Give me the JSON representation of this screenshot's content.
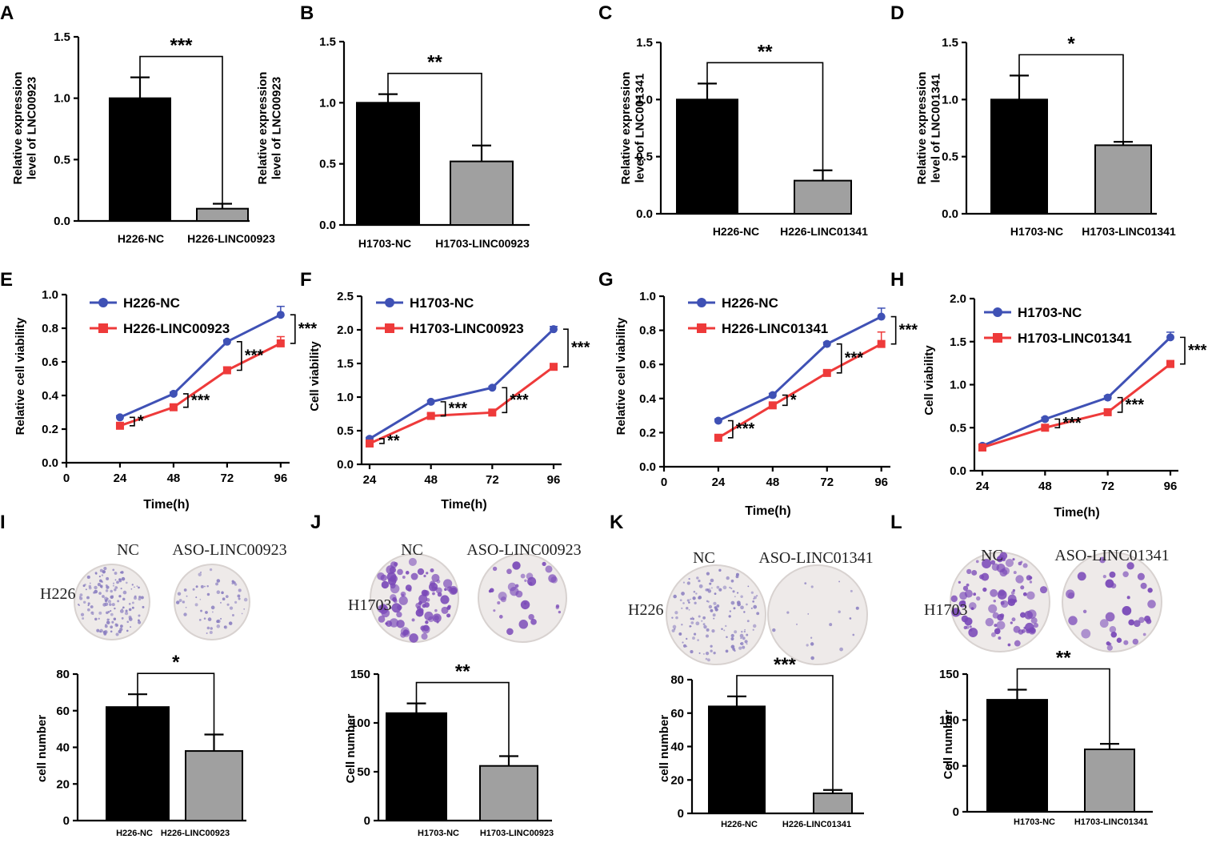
{
  "panels": [
    {
      "label": "A",
      "type": "bar",
      "ylabel": [
        "Relative expression",
        "level of LNC00923"
      ],
      "yticks": [
        "0.0",
        "0.5",
        "1.0",
        "1.5"
      ],
      "ylim": [
        0,
        1.5
      ],
      "categories": [
        "H226-NC",
        "H226-LINC00923"
      ],
      "values": [
        1.0,
        0.1
      ],
      "errors": [
        0.17,
        0.04
      ],
      "sig": "***"
    },
    {
      "label": "B",
      "type": "bar",
      "ylabel": [
        "Relative expression",
        "level of LNC00923"
      ],
      "yticks": [
        "0.0",
        "0.5",
        "1.0",
        "1.5"
      ],
      "ylim": [
        0,
        1.5
      ],
      "categories": [
        "H1703-NC",
        "H1703-LINC00923"
      ],
      "values": [
        1.0,
        0.52
      ],
      "errors": [
        0.07,
        0.13
      ],
      "sig": "**"
    },
    {
      "label": "C",
      "type": "bar",
      "ylabel": [
        "Relative expression",
        "level of LNC001341"
      ],
      "yticks": [
        "0.0",
        "0.5",
        "1.0",
        "1.5"
      ],
      "ylim": [
        0,
        1.5
      ],
      "categories": [
        "H226-NC",
        "H226-LINC01341"
      ],
      "values": [
        1.0,
        0.29
      ],
      "errors": [
        0.14,
        0.09
      ],
      "sig": "**"
    },
    {
      "label": "D",
      "type": "bar",
      "ylabel": [
        "Relative expression",
        "level of LNC001341"
      ],
      "yticks": [
        "0.0",
        "0.5",
        "1.0",
        "1.5"
      ],
      "ylim": [
        0,
        1.5
      ],
      "categories": [
        "H1703-NC",
        "H1703-LINC01341"
      ],
      "values": [
        1.0,
        0.6
      ],
      "errors": [
        0.21,
        0.03
      ],
      "sig": "*"
    },
    {
      "label": "E",
      "type": "line",
      "ylabel": [
        "Relative cell viability"
      ],
      "xlabel": "Time(h)",
      "xticks": [
        "0",
        "24",
        "48",
        "72",
        "96"
      ],
      "xlim": [
        0,
        100
      ],
      "yticks": [
        "0.0",
        "0.2",
        "0.4",
        "0.6",
        "0.8",
        "1.0"
      ],
      "ylim": [
        0,
        1.0
      ],
      "x": [
        24,
        48,
        72,
        96
      ],
      "series": [
        {
          "name": "H226-NC",
          "values": [
            0.27,
            0.41,
            0.72,
            0.88
          ],
          "errors": [
            0.01,
            0.01,
            0.01,
            0.05
          ]
        },
        {
          "name": "H226-LINC00923",
          "values": [
            0.22,
            0.33,
            0.55,
            0.71
          ],
          "errors": [
            0.01,
            0.01,
            0.02,
            0.04
          ]
        }
      ],
      "sigs": [
        "*",
        "***",
        "***",
        "***"
      ]
    },
    {
      "label": "F",
      "type": "line",
      "ylabel": [
        "Cell viability"
      ],
      "xlabel": "Time(h)",
      "xticks": [
        "24",
        "48",
        "72",
        "96"
      ],
      "xlim": [
        24,
        96
      ],
      "yticks": [
        "0.0",
        "0.5",
        "1.0",
        "1.5",
        "2.0",
        "2.5"
      ],
      "ylim": [
        0,
        2.5
      ],
      "x": [
        24,
        48,
        72,
        96
      ],
      "series": [
        {
          "name": "H1703-NC",
          "values": [
            0.38,
            0.93,
            1.14,
            2.01
          ],
          "errors": [
            0.02,
            0.02,
            0.02,
            0.04
          ]
        },
        {
          "name": "H1703-LINC00923",
          "values": [
            0.31,
            0.72,
            0.77,
            1.45
          ],
          "errors": [
            0.02,
            0.03,
            0.02,
            0.02
          ]
        }
      ],
      "sigs": [
        "**",
        "***",
        "***",
        "***"
      ]
    },
    {
      "label": "G",
      "type": "line",
      "ylabel": [
        "Relative cell viability"
      ],
      "xlabel": "Time(h)",
      "xticks": [
        "0",
        "24",
        "48",
        "72",
        "96"
      ],
      "xlim": [
        0,
        100
      ],
      "yticks": [
        "0.0",
        "0.2",
        "0.4",
        "0.6",
        "0.8",
        "1.0"
      ],
      "ylim": [
        0,
        1.0
      ],
      "x": [
        24,
        48,
        72,
        96
      ],
      "series": [
        {
          "name": "H226-NC",
          "values": [
            0.27,
            0.42,
            0.72,
            0.88
          ],
          "errors": [
            0.01,
            0.01,
            0.01,
            0.05
          ]
        },
        {
          "name": "H226-LINC01341",
          "values": [
            0.17,
            0.36,
            0.55,
            0.72
          ],
          "errors": [
            0.01,
            0.01,
            0.01,
            0.07
          ]
        }
      ],
      "sigs": [
        "***",
        "*",
        "***",
        "***"
      ]
    },
    {
      "label": "H",
      "type": "line",
      "ylabel": [
        "Cell viability"
      ],
      "xlabel": "Time(h)",
      "xticks": [
        "24",
        "48",
        "72",
        "96"
      ],
      "xlim": [
        24,
        96
      ],
      "yticks": [
        "0.0",
        "0.5",
        "1.0",
        "1.5",
        "2.0"
      ],
      "ylim": [
        0,
        2.0
      ],
      "x": [
        24,
        48,
        72,
        96
      ],
      "series": [
        {
          "name": "H1703-NC",
          "values": [
            0.29,
            0.6,
            0.85,
            1.55
          ],
          "errors": [
            0.02,
            0.02,
            0.02,
            0.06
          ]
        },
        {
          "name": "H1703-LINC01341",
          "values": [
            0.27,
            0.5,
            0.68,
            1.24
          ],
          "errors": [
            0.01,
            0.02,
            0.02,
            0.04
          ]
        }
      ],
      "sigs": [
        "",
        "***",
        "***",
        "***"
      ]
    },
    {
      "label": "I",
      "type": "bar",
      "ylabel": [
        "cell number"
      ],
      "yticks": [
        "0",
        "20",
        "40",
        "60",
        "80"
      ],
      "ylim": [
        0,
        80
      ],
      "categories": [
        "H226-NC",
        "H226-LINC00923"
      ],
      "values": [
        62,
        38
      ],
      "errors": [
        7,
        9
      ],
      "sig": "*",
      "row_label": "H226",
      "col_labels": [
        "NC",
        "ASO-LINC00923"
      ]
    },
    {
      "label": "J",
      "type": "bar",
      "ylabel": [
        "Cell number"
      ],
      "yticks": [
        "0",
        "50",
        "100",
        "150"
      ],
      "ylim": [
        0,
        150
      ],
      "categories": [
        "H1703-NC",
        "H1703-LINC00923"
      ],
      "values": [
        110,
        56
      ],
      "errors": [
        10,
        10
      ],
      "sig": "**",
      "row_label": "H1703",
      "col_labels": [
        "NC",
        "ASO-LINC00923"
      ]
    },
    {
      "label": "K",
      "type": "bar",
      "ylabel": [
        "cell number"
      ],
      "yticks": [
        "0",
        "20",
        "40",
        "60",
        "80"
      ],
      "ylim": [
        0,
        80
      ],
      "categories": [
        "H226-NC",
        "H226-LINC01341"
      ],
      "values": [
        64,
        12
      ],
      "errors": [
        6,
        2
      ],
      "sig": "***",
      "row_label": "H226",
      "col_labels": [
        "NC",
        "ASO-LINC01341"
      ]
    },
    {
      "label": "L",
      "type": "bar",
      "ylabel": [
        "Cell number"
      ],
      "yticks": [
        "0",
        "50",
        "100",
        "150"
      ],
      "ylim": [
        0,
        150
      ],
      "categories": [
        "H1703-NC",
        "H1703-LINC01341"
      ],
      "values": [
        122,
        68
      ],
      "errors": [
        11,
        6
      ],
      "sig": "**",
      "row_label": "H1703",
      "col_labels": [
        "NC",
        "ASO-LINC01341"
      ]
    }
  ],
  "colors": {
    "bar_primary": "#000000",
    "bar_secondary": "#a0a0a0",
    "series_a": "#3f51b5",
    "series_b": "#ee3a3a",
    "plate_bg": "#eeeae9",
    "colony_light": "#8a7ec0",
    "colony_dark": "#7a49b8"
  },
  "chart_data": [
    {
      "type": "bar",
      "title": "A",
      "categories": [
        "H226-NC",
        "H226-LINC00923"
      ],
      "values": [
        1.0,
        0.1
      ],
      "ylabel": "Relative expression level of LNC00923",
      "ylim": [
        0,
        1.5
      ]
    },
    {
      "type": "bar",
      "title": "B",
      "categories": [
        "H1703-NC",
        "H1703-LINC00923"
      ],
      "values": [
        1.0,
        0.52
      ],
      "ylabel": "Relative expression level of LNC00923",
      "ylim": [
        0,
        1.5
      ]
    },
    {
      "type": "bar",
      "title": "C",
      "categories": [
        "H226-NC",
        "H226-LINC01341"
      ],
      "values": [
        1.0,
        0.29
      ],
      "ylabel": "Relative expression level of LNC001341",
      "ylim": [
        0,
        1.5
      ]
    },
    {
      "type": "bar",
      "title": "D",
      "categories": [
        "H1703-NC",
        "H1703-LINC01341"
      ],
      "values": [
        1.0,
        0.6
      ],
      "ylabel": "Relative expression level of LNC001341",
      "ylim": [
        0,
        1.5
      ]
    },
    {
      "type": "line",
      "title": "E",
      "x": [
        24,
        48,
        72,
        96
      ],
      "series": [
        {
          "name": "H226-NC",
          "values": [
            0.27,
            0.41,
            0.72,
            0.88
          ]
        },
        {
          "name": "H226-LINC00923",
          "values": [
            0.22,
            0.33,
            0.55,
            0.71
          ]
        }
      ],
      "xlabel": "Time(h)",
      "ylabel": "Relative cell viability",
      "ylim": [
        0,
        1.0
      ]
    },
    {
      "type": "line",
      "title": "F",
      "x": [
        24,
        48,
        72,
        96
      ],
      "series": [
        {
          "name": "H1703-NC",
          "values": [
            0.38,
            0.93,
            1.14,
            2.01
          ]
        },
        {
          "name": "H1703-LINC00923",
          "values": [
            0.31,
            0.72,
            0.77,
            1.45
          ]
        }
      ],
      "xlabel": "Time(h)",
      "ylabel": "Cell viability",
      "ylim": [
        0,
        2.5
      ]
    },
    {
      "type": "line",
      "title": "G",
      "x": [
        24,
        48,
        72,
        96
      ],
      "series": [
        {
          "name": "H226-NC",
          "values": [
            0.27,
            0.42,
            0.72,
            0.88
          ]
        },
        {
          "name": "H226-LINC01341",
          "values": [
            0.17,
            0.36,
            0.55,
            0.72
          ]
        }
      ],
      "xlabel": "Time(h)",
      "ylabel": "Relative cell viability",
      "ylim": [
        0,
        1.0
      ]
    },
    {
      "type": "line",
      "title": "H",
      "x": [
        24,
        48,
        72,
        96
      ],
      "series": [
        {
          "name": "H1703-NC",
          "values": [
            0.29,
            0.6,
            0.85,
            1.55
          ]
        },
        {
          "name": "H1703-LINC01341",
          "values": [
            0.27,
            0.5,
            0.68,
            1.24
          ]
        }
      ],
      "xlabel": "Time(h)",
      "ylabel": "Cell viability",
      "ylim": [
        0,
        2.0
      ]
    },
    {
      "type": "bar",
      "title": "I",
      "categories": [
        "H226-NC",
        "H226-LINC00923"
      ],
      "values": [
        62,
        38
      ],
      "ylabel": "cell number",
      "ylim": [
        0,
        80
      ]
    },
    {
      "type": "bar",
      "title": "J",
      "categories": [
        "H1703-NC",
        "H1703-LINC00923"
      ],
      "values": [
        110,
        56
      ],
      "ylabel": "Cell number",
      "ylim": [
        0,
        150
      ]
    },
    {
      "type": "bar",
      "title": "K",
      "categories": [
        "H226-NC",
        "H226-LINC01341"
      ],
      "values": [
        64,
        12
      ],
      "ylabel": "cell number",
      "ylim": [
        0,
        80
      ]
    },
    {
      "type": "bar",
      "title": "L",
      "categories": [
        "H1703-NC",
        "H1703-LINC01341"
      ],
      "values": [
        122,
        68
      ],
      "ylabel": "Cell number",
      "ylim": [
        0,
        150
      ]
    }
  ]
}
